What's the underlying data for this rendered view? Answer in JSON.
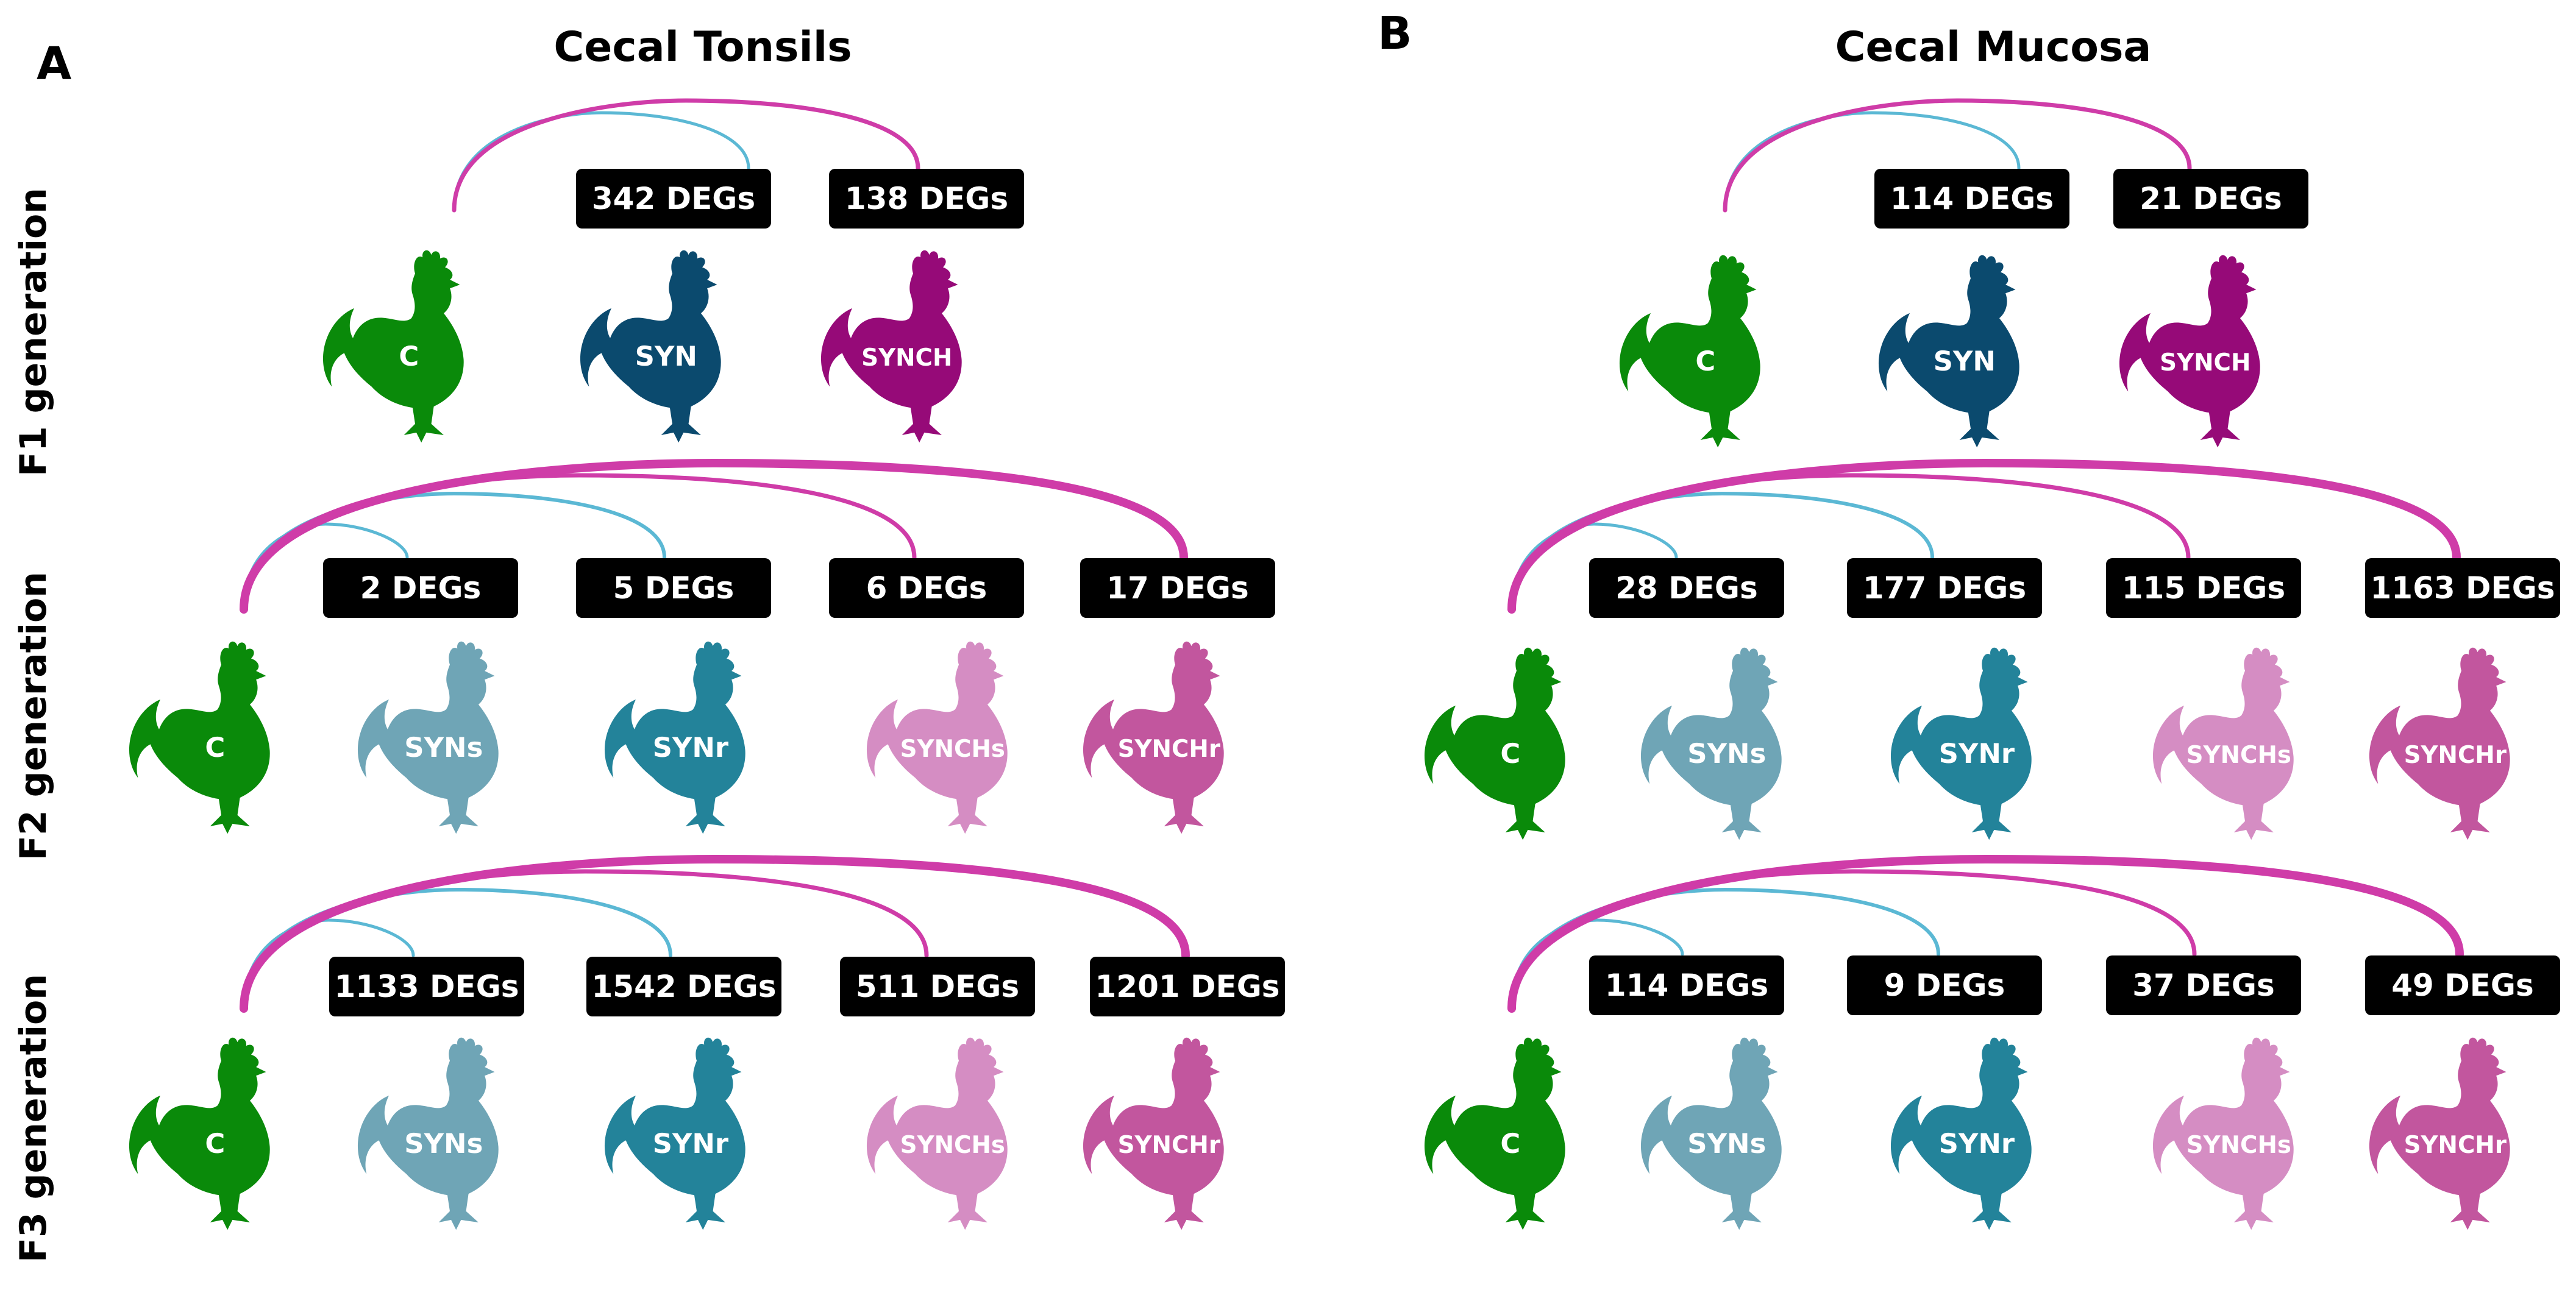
{
  "colors": {
    "C": "#0a8a0a",
    "SYN": "#0b4a6e",
    "SYNCH": "#960a78",
    "SYNs": "#6fa5b6",
    "SYNr": "#23839a",
    "SYNCHs": "#d58dc3",
    "SYNCHr": "#c2569e",
    "arc_syn": "#5bb8d4",
    "arc_synch": "#cf3ca8"
  },
  "rows": {
    "f1": "F1 generation",
    "f2": "F2 generation",
    "f3": "F3 generation"
  },
  "panels": [
    {
      "letter": "A",
      "title": "Cecal Tonsils",
      "generations": [
        {
          "birds": [
            "C",
            "SYN",
            "SYNCH"
          ],
          "degs": [
            "342 DEGs",
            "138 DEGs"
          ]
        },
        {
          "birds": [
            "C",
            "SYNs",
            "SYNr",
            "SYNCHs",
            "SYNCHr"
          ],
          "degs": [
            "2 DEGs",
            "5 DEGs",
            "6 DEGs",
            "17 DEGs"
          ]
        },
        {
          "birds": [
            "C",
            "SYNs",
            "SYNr",
            "SYNCHs",
            "SYNCHr"
          ],
          "degs": [
            "1133 DEGs",
            "1542 DEGs",
            "511 DEGs",
            "1201 DEGs"
          ]
        }
      ]
    },
    {
      "letter": "B",
      "title": "Cecal Mucosa",
      "generations": [
        {
          "birds": [
            "C",
            "SYN",
            "SYNCH"
          ],
          "degs": [
            "114 DEGs",
            "21 DEGs"
          ]
        },
        {
          "birds": [
            "C",
            "SYNs",
            "SYNr",
            "SYNCHs",
            "SYNCHr"
          ],
          "degs": [
            "28 DEGs",
            "177 DEGs",
            "115 DEGs",
            "1163 DEGs"
          ]
        },
        {
          "birds": [
            "C",
            "SYNs",
            "SYNr",
            "SYNCHs",
            "SYNCHr"
          ],
          "degs": [
            "114 DEGs",
            "9 DEGs",
            "37 DEGs",
            "49 DEGs"
          ]
        }
      ]
    }
  ]
}
